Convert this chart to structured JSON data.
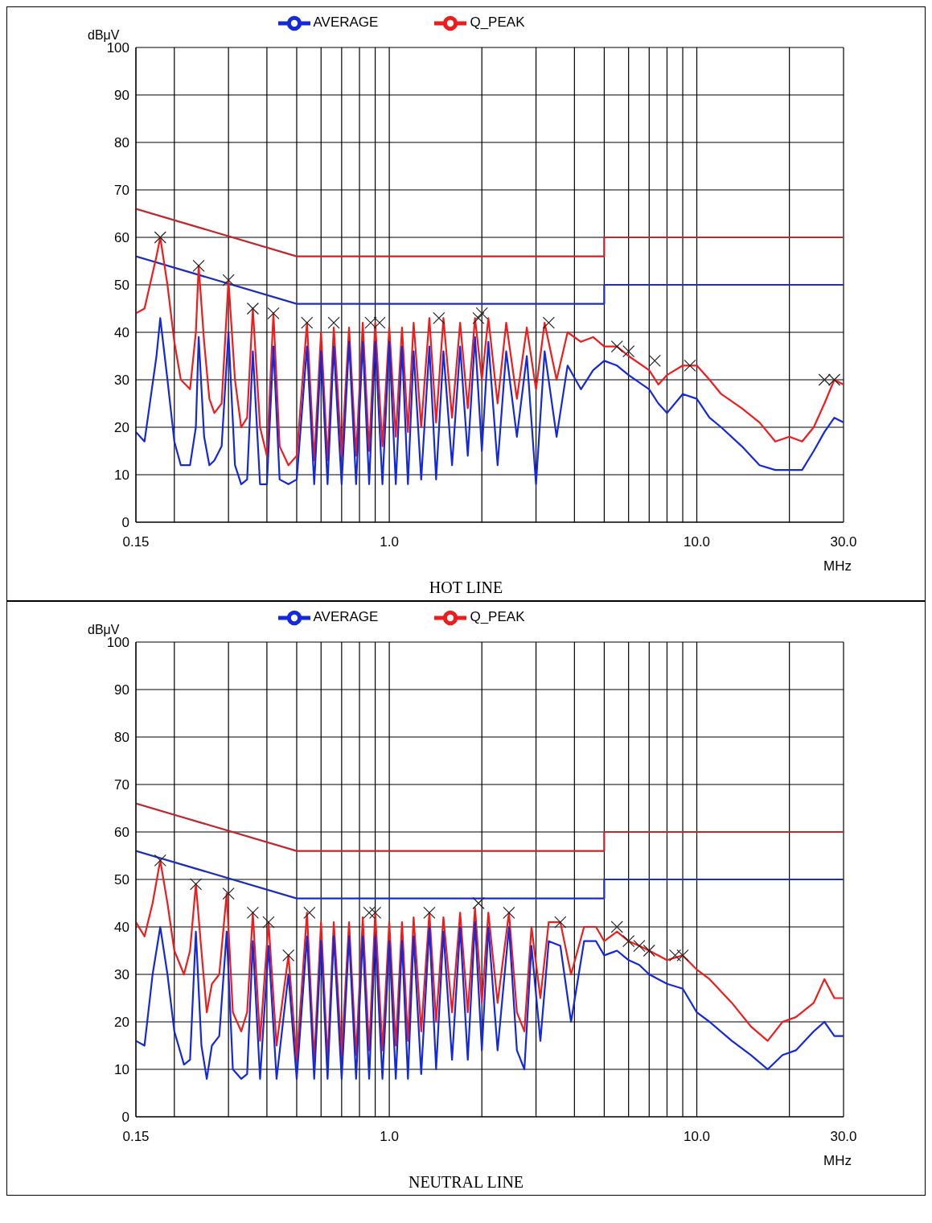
{
  "chart_data": [
    {
      "type": "line",
      "title": "HOT LINE",
      "xlabel": "MHz",
      "ylabel": "dBμV",
      "log": "x",
      "grid": true,
      "legend": "top",
      "marker": "none",
      "line_style": "solid",
      "xlim": [
        0.15,
        30
      ],
      "xticks": [
        {
          "value": 0.15,
          "label": "0.15"
        },
        {
          "value": 0.2,
          "label": null
        },
        {
          "value": 0.3,
          "label": null
        },
        {
          "value": 0.4,
          "label": null
        },
        {
          "value": 0.5,
          "label": null
        },
        {
          "value": 0.6,
          "label": null
        },
        {
          "value": 0.7,
          "label": null
        },
        {
          "value": 0.8,
          "label": null
        },
        {
          "value": 0.9,
          "label": null
        },
        {
          "value": 1,
          "label": "1.0"
        },
        {
          "value": 2,
          "label": null
        },
        {
          "value": 3,
          "label": null
        },
        {
          "value": 4,
          "label": null
        },
        {
          "value": 5,
          "label": null
        },
        {
          "value": 6,
          "label": null
        },
        {
          "value": 7,
          "label": null
        },
        {
          "value": 8,
          "label": null
        },
        {
          "value": 9,
          "label": null
        },
        {
          "value": 10,
          "label": "10.0"
        },
        {
          "value": 20,
          "label": null
        },
        {
          "value": 30,
          "label": "30.0"
        }
      ],
      "ylim": [
        0,
        100
      ],
      "yticks": [
        0,
        10,
        20,
        30,
        40,
        50,
        60,
        70,
        80,
        90,
        100
      ],
      "x": [
        0.15,
        0.16,
        0.175,
        0.18,
        0.19,
        0.2,
        0.21,
        0.225,
        0.235,
        0.24,
        0.25,
        0.26,
        0.27,
        0.285,
        0.3,
        0.315,
        0.33,
        0.345,
        0.36,
        0.38,
        0.4,
        0.42,
        0.44,
        0.47,
        0.5,
        0.54,
        0.57,
        0.6,
        0.63,
        0.66,
        0.7,
        0.74,
        0.78,
        0.82,
        0.86,
        0.9,
        0.95,
        1.0,
        1.05,
        1.1,
        1.15,
        1.2,
        1.27,
        1.35,
        1.42,
        1.5,
        1.6,
        1.7,
        1.8,
        1.9,
        2.0,
        2.1,
        2.25,
        2.4,
        2.6,
        2.8,
        3.0,
        3.2,
        3.5,
        3.8,
        4.2,
        4.6,
        5.0,
        5.5,
        6.0,
        7.0,
        7.5,
        8.0,
        9.0,
        10,
        11,
        12,
        14,
        16,
        18,
        20,
        22,
        24,
        26,
        28,
        30
      ],
      "series": [
        {
          "type": "line",
          "color": "#c0282d",
          "x": [
            0.15,
            0.5,
            5,
            5,
            30
          ],
          "values": [
            66,
            56,
            56,
            60,
            60
          ]
        },
        {
          "type": "line",
          "color": "#1c2fb8",
          "x": [
            0.15,
            0.5,
            5,
            5,
            30
          ],
          "values": [
            56,
            46,
            46,
            50,
            50
          ]
        },
        {
          "name": "Q_PEAK",
          "color": "#ee1c1c",
          "values": [
            44,
            45,
            56,
            60,
            50,
            38,
            30,
            28,
            40,
            54,
            38,
            26,
            23,
            25,
            51,
            30,
            20,
            22,
            45,
            20,
            14,
            44,
            16,
            12,
            14,
            42,
            13,
            40,
            13,
            41,
            14,
            41,
            14,
            42,
            15,
            42,
            16,
            41,
            18,
            41,
            19,
            42,
            20,
            43,
            21,
            43,
            22,
            42,
            24,
            43,
            30,
            43,
            25,
            42,
            26,
            41,
            28,
            42,
            30,
            40,
            38,
            39,
            37,
            37,
            35,
            32,
            29,
            31,
            33,
            33,
            30,
            27,
            24,
            21,
            17,
            18,
            17,
            20,
            25,
            30,
            29
          ]
        },
        {
          "name": "AVERAGE",
          "color": "#1428dc",
          "values": [
            19,
            17,
            35,
            43,
            30,
            17,
            12,
            12,
            20,
            39,
            18,
            12,
            13,
            16,
            40,
            12,
            8,
            9,
            36,
            8,
            8,
            37,
            9,
            8,
            9,
            37,
            8,
            36,
            8,
            37,
            8,
            38,
            8,
            38,
            8,
            38,
            8,
            38,
            8,
            37,
            8,
            36,
            9,
            37,
            9,
            36,
            12,
            37,
            14,
            39,
            15,
            38,
            12,
            36,
            18,
            35,
            8,
            36,
            18,
            33,
            28,
            32,
            34,
            33,
            31,
            28,
            25,
            23,
            27,
            26,
            22,
            20,
            16,
            12,
            11,
            11,
            11,
            15,
            19,
            22,
            21
          ]
        },
        {
          "type": "scatter",
          "marker": "cross",
          "color": "#222222",
          "x": [
            0.18,
            0.24,
            0.3,
            0.36,
            0.42,
            0.54,
            0.66,
            0.87,
            0.93,
            1.45,
            1.95,
            2.0,
            3.3,
            5.5,
            6.0,
            7.3,
            9.5,
            26,
            28
          ],
          "values": [
            60,
            54,
            51,
            45,
            44,
            42,
            42,
            42,
            42,
            43,
            43,
            44,
            42,
            37,
            36,
            34,
            33,
            30,
            30
          ]
        }
      ]
    },
    {
      "type": "line",
      "title": "NEUTRAL LINE",
      "xlabel": "MHz",
      "ylabel": "dBμV",
      "log": "x",
      "grid": true,
      "legend": "top",
      "marker": "none",
      "line_style": "solid",
      "xlim": [
        0.15,
        30
      ],
      "xticks": [
        {
          "value": 0.15,
          "label": "0.15"
        },
        {
          "value": 0.2,
          "label": null
        },
        {
          "value": 0.3,
          "label": null
        },
        {
          "value": 0.4,
          "label": null
        },
        {
          "value": 0.5,
          "label": null
        },
        {
          "value": 0.6,
          "label": null
        },
        {
          "value": 0.7,
          "label": null
        },
        {
          "value": 0.8,
          "label": null
        },
        {
          "value": 0.9,
          "label": null
        },
        {
          "value": 1,
          "label": "1.0"
        },
        {
          "value": 2,
          "label": null
        },
        {
          "value": 3,
          "label": null
        },
        {
          "value": 4,
          "label": null
        },
        {
          "value": 5,
          "label": null
        },
        {
          "value": 6,
          "label": null
        },
        {
          "value": 7,
          "label": null
        },
        {
          "value": 8,
          "label": null
        },
        {
          "value": 9,
          "label": null
        },
        {
          "value": 10,
          "label": "10.0"
        },
        {
          "value": 20,
          "label": null
        },
        {
          "value": 30,
          "label": "30.0"
        }
      ],
      "ylim": [
        0,
        100
      ],
      "yticks": [
        0,
        10,
        20,
        30,
        40,
        50,
        60,
        70,
        80,
        90,
        100
      ],
      "x": [
        0.15,
        0.16,
        0.17,
        0.18,
        0.19,
        0.2,
        0.215,
        0.225,
        0.235,
        0.245,
        0.255,
        0.265,
        0.28,
        0.296,
        0.31,
        0.33,
        0.345,
        0.36,
        0.38,
        0.405,
        0.43,
        0.47,
        0.5,
        0.54,
        0.57,
        0.6,
        0.63,
        0.66,
        0.7,
        0.74,
        0.78,
        0.82,
        0.86,
        0.9,
        0.95,
        1.0,
        1.05,
        1.1,
        1.15,
        1.2,
        1.27,
        1.35,
        1.42,
        1.5,
        1.6,
        1.7,
        1.8,
        1.9,
        2.0,
        2.1,
        2.25,
        2.45,
        2.6,
        2.75,
        2.9,
        3.1,
        3.3,
        3.6,
        3.9,
        4.3,
        4.7,
        5.0,
        5.5,
        6.0,
        6.5,
        7.0,
        8.0,
        9.0,
        10,
        11,
        13,
        15,
        17,
        19,
        21,
        24,
        26,
        28,
        30
      ],
      "series": [
        {
          "type": "line",
          "color": "#c0282d",
          "x": [
            0.15,
            0.5,
            5,
            5,
            30
          ],
          "values": [
            66,
            56,
            56,
            60,
            60
          ]
        },
        {
          "type": "line",
          "color": "#1c2fb8",
          "x": [
            0.15,
            0.5,
            5,
            5,
            30
          ],
          "values": [
            56,
            46,
            46,
            50,
            50
          ]
        },
        {
          "name": "Q_PEAK",
          "color": "#ee1c1c",
          "values": [
            41,
            38,
            45,
            54,
            45,
            35,
            30,
            35,
            49,
            35,
            22,
            28,
            30,
            47,
            22,
            18,
            22,
            43,
            16,
            41,
            15,
            34,
            12,
            43,
            12,
            41,
            12,
            41,
            13,
            41,
            13,
            42,
            14,
            43,
            14,
            41,
            15,
            41,
            16,
            42,
            18,
            43,
            20,
            42,
            22,
            43,
            22,
            44,
            24,
            43,
            24,
            43,
            22,
            18,
            40,
            25,
            41,
            41,
            30,
            40,
            40,
            37,
            39,
            37,
            36,
            35,
            33,
            34,
            31,
            29,
            24,
            19,
            16,
            20,
            21,
            24,
            29,
            25,
            25
          ]
        },
        {
          "name": "AVERAGE",
          "color": "#1428dc",
          "values": [
            16,
            15,
            30,
            40,
            30,
            18,
            11,
            12,
            39,
            15,
            8,
            15,
            17,
            39,
            10,
            8,
            9,
            37,
            8,
            36,
            8,
            30,
            8,
            38,
            8,
            37,
            8,
            38,
            8,
            38,
            8,
            38,
            8,
            38,
            8,
            37,
            8,
            37,
            8,
            38,
            9,
            40,
            10,
            39,
            12,
            40,
            12,
            41,
            14,
            40,
            14,
            40,
            14,
            10,
            36,
            16,
            37,
            36,
            20,
            37,
            37,
            34,
            35,
            33,
            32,
            30,
            28,
            27,
            22,
            20,
            16,
            13,
            10,
            13,
            14,
            18,
            20,
            17,
            17
          ]
        },
        {
          "type": "scatter",
          "marker": "cross",
          "color": "#222222",
          "x": [
            0.18,
            0.235,
            0.3,
            0.36,
            0.405,
            0.47,
            0.55,
            0.86,
            0.9,
            1.35,
            1.95,
            2.45,
            3.6,
            5.5,
            6.0,
            6.5,
            7.0,
            8.5,
            9.0
          ],
          "values": [
            54,
            49,
            47,
            43,
            41,
            34,
            43,
            43,
            43,
            43,
            45,
            43,
            41,
            40,
            37,
            36,
            35,
            34,
            34
          ]
        }
      ]
    }
  ]
}
